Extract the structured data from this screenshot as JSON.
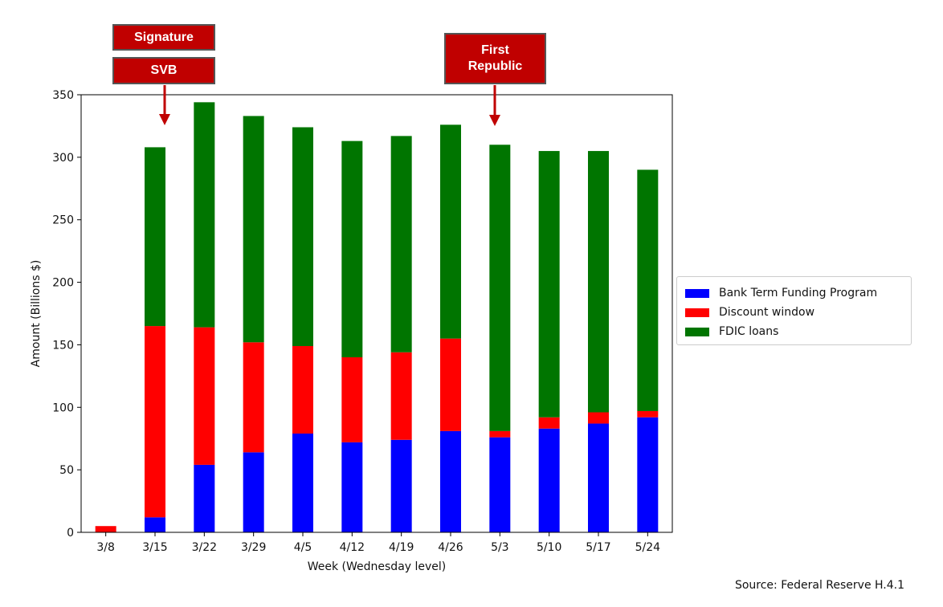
{
  "chart_data": {
    "type": "bar",
    "stacked": true,
    "categories": [
      "3/8",
      "3/15",
      "3/22",
      "3/29",
      "4/5",
      "4/12",
      "4/19",
      "4/26",
      "5/3",
      "5/10",
      "5/17",
      "5/24"
    ],
    "series": [
      {
        "name": "Bank Term Funding Program",
        "color": "#0000ff",
        "values": [
          0,
          12,
          54,
          64,
          79,
          72,
          74,
          81,
          76,
          83,
          87,
          92
        ]
      },
      {
        "name": "Discount window",
        "color": "#ff0000",
        "values": [
          5,
          153,
          110,
          88,
          70,
          68,
          70,
          74,
          5,
          9,
          9,
          5
        ]
      },
      {
        "name": "FDIC loans",
        "color": "#007500",
        "values": [
          0,
          143,
          180,
          181,
          175,
          173,
          173,
          171,
          229,
          213,
          209,
          193
        ]
      }
    ],
    "xlabel": "Week (Wednesday level)",
    "ylabel": "Amount (Billions $)",
    "ylim": [
      0,
      350
    ],
    "yticks": [
      0,
      50,
      100,
      150,
      200,
      250,
      300,
      350
    ],
    "legend_position": "right"
  },
  "annotations": {
    "signature": "Signature",
    "svb": "SVB",
    "first_republic_line1": "First",
    "first_republic_line2": "Republic"
  },
  "source": "Source: Federal Reserve H.4.1"
}
